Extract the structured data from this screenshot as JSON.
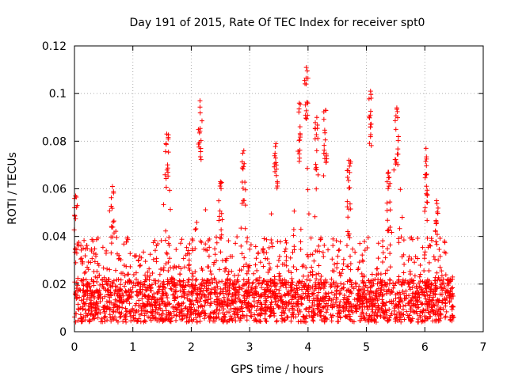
{
  "chart_data": {
    "type": "scatter",
    "title": "Day 191 of 2015, Rate Of TEC Index for receiver spt0",
    "xlabel": "GPS time / hours",
    "ylabel": "ROTI / TECUs",
    "xlim": [
      0,
      7
    ],
    "ylim": [
      0,
      0.12
    ],
    "xticks": [
      "0",
      "1",
      "2",
      "3",
      "4",
      "5",
      "6",
      "7"
    ],
    "yticks": [
      "0",
      "0.02",
      "0.04",
      "0.06",
      "0.08",
      "0.1",
      "0.12"
    ],
    "grid": true,
    "marker": "+",
    "color": "#ff0000",
    "x_end": 6.5,
    "series_note": "dense scatter of ROTI values; baseline ~0.005-0.025 TECUs with peaks listed below",
    "peaks": [
      {
        "x": 0.02,
        "y": 0.057
      },
      {
        "x": 0.65,
        "y": 0.061
      },
      {
        "x": 1.58,
        "y": 0.083
      },
      {
        "x": 2.15,
        "y": 0.097
      },
      {
        "x": 2.5,
        "y": 0.063
      },
      {
        "x": 2.9,
        "y": 0.076
      },
      {
        "x": 3.45,
        "y": 0.079
      },
      {
        "x": 3.85,
        "y": 0.096
      },
      {
        "x": 3.97,
        "y": 0.111
      },
      {
        "x": 4.15,
        "y": 0.09
      },
      {
        "x": 4.3,
        "y": 0.093
      },
      {
        "x": 4.7,
        "y": 0.072
      },
      {
        "x": 5.07,
        "y": 0.101
      },
      {
        "x": 5.38,
        "y": 0.067
      },
      {
        "x": 5.52,
        "y": 0.094
      },
      {
        "x": 6.02,
        "y": 0.077
      },
      {
        "x": 6.2,
        "y": 0.055
      }
    ]
  }
}
